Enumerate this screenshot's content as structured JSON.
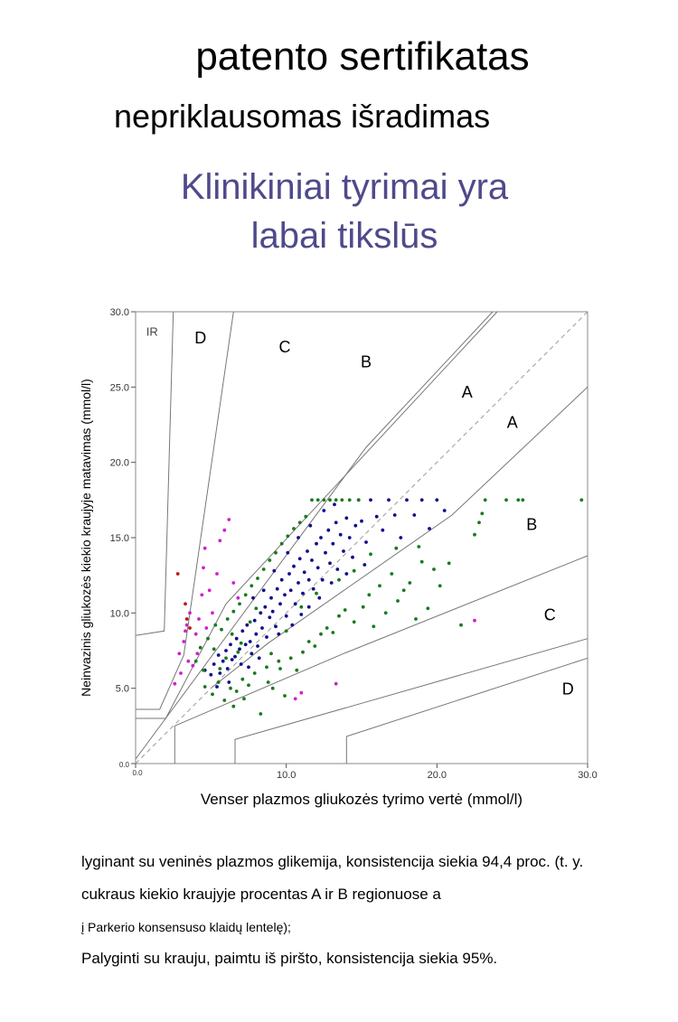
{
  "header": {
    "title": "patento sertifikatas",
    "subtitle": "nepriklausomas išradimas",
    "tagline_line1": "Klinikiniai tyrimai yra",
    "tagline_line2": "labai tikslūs"
  },
  "captions": {
    "line1": "lyginant su veninės plazmos glikemija, konsistencija siekia 94,4 proc. (t. y.",
    "line2": "cukraus kiekio kraujyje procentas A ir B regionuose a",
    "line3": "į Parkerio konsensuso klaidų lentelę);",
    "line4": "Palyginti su krauju, paimtu iš piršto, konsistencija siekia 95%."
  },
  "chart_data": {
    "type": "scatter",
    "title": "",
    "xlabel": "Venser plazmos gliukozės tyrimo vertė (mmol/l)",
    "ylabel": "Neinvazinis gliukozės kiekio kraujyje matavimas (mmol/l)",
    "xlim": [
      0,
      30
    ],
    "ylim": [
      0,
      30
    ],
    "x_ticks": [
      "0.0",
      "10.0",
      "20.0",
      "30.0"
    ],
    "y_ticks": [
      "0.0",
      "5.0",
      "10.0",
      "15.0",
      "20.0",
      "25.0",
      "30.0"
    ],
    "grid": false,
    "identity_line": true,
    "zone_labels": [
      {
        "text": "IR",
        "x": 1.1,
        "y": 28.4
      },
      {
        "text": "D",
        "x": 4.3,
        "y": 27.9
      },
      {
        "text": "C",
        "x": 9.9,
        "y": 27.3
      },
      {
        "text": "B",
        "x": 15.3,
        "y": 26.3
      },
      {
        "text": "A",
        "x": 22.0,
        "y": 24.3
      },
      {
        "text": "A",
        "x": 25.0,
        "y": 22.3
      },
      {
        "text": "B",
        "x": 26.3,
        "y": 15.5
      },
      {
        "text": "C",
        "x": 27.5,
        "y": 9.5
      },
      {
        "text": "D",
        "x": 28.7,
        "y": 4.6
      }
    ],
    "boundaries": [
      {
        "name": "upper-A",
        "points": [
          [
            0,
            0.3
          ],
          [
            15.3,
            21.0
          ],
          [
            23.7,
            30.0
          ]
        ]
      },
      {
        "name": "lower-A",
        "points": [
          [
            5.0,
            5.0
          ],
          [
            8.8,
            8.0
          ],
          [
            21.0,
            16.5
          ],
          [
            30.0,
            25.0
          ]
        ]
      },
      {
        "name": "upper-B",
        "points": [
          [
            0,
            3.0
          ],
          [
            2.0,
            3.0
          ],
          [
            6.0,
            10.6
          ],
          [
            24.0,
            30.0
          ]
        ]
      },
      {
        "name": "lower-B",
        "points": [
          [
            2.6,
            0.0
          ],
          [
            2.6,
            2.5
          ],
          [
            13.8,
            7.3
          ],
          [
            30.0,
            13.8
          ]
        ]
      },
      {
        "name": "upper-C",
        "points": [
          [
            0,
            3.6
          ],
          [
            1.6,
            3.6
          ],
          [
            3.2,
            7.2
          ],
          [
            6.5,
            30.0
          ]
        ]
      },
      {
        "name": "lower-C",
        "points": [
          [
            6.6,
            0.0
          ],
          [
            6.6,
            1.6
          ],
          [
            15.0,
            4.0
          ],
          [
            30.0,
            8.3
          ]
        ]
      },
      {
        "name": "upper-D",
        "points": [
          [
            0,
            8.5
          ],
          [
            1.9,
            8.8
          ],
          [
            2.5,
            30.0
          ]
        ]
      },
      {
        "name": "lower-D",
        "points": [
          [
            14.0,
            0.0
          ],
          [
            14.0,
            1.8
          ],
          [
            30.0,
            7.0
          ]
        ]
      }
    ],
    "series": [
      {
        "name": "zone A",
        "color": "#10108a",
        "points": [
          [
            4.6,
            6.2
          ],
          [
            5.0,
            5.9
          ],
          [
            5.2,
            6.6
          ],
          [
            5.5,
            7.2
          ],
          [
            5.6,
            6.0
          ],
          [
            5.8,
            6.8
          ],
          [
            6.0,
            7.5
          ],
          [
            6.1,
            6.3
          ],
          [
            6.3,
            7.9
          ],
          [
            6.4,
            6.9
          ],
          [
            6.6,
            7.1
          ],
          [
            6.7,
            8.3
          ],
          [
            6.9,
            7.6
          ],
          [
            7.0,
            6.6
          ],
          [
            7.1,
            8.8
          ],
          [
            7.3,
            7.9
          ],
          [
            7.4,
            9.2
          ],
          [
            7.6,
            8.1
          ],
          [
            7.7,
            7.3
          ],
          [
            7.9,
            9.5
          ],
          [
            8.0,
            8.6
          ],
          [
            8.1,
            7.8
          ],
          [
            8.3,
            10.0
          ],
          [
            8.4,
            9.0
          ],
          [
            8.6,
            10.4
          ],
          [
            8.7,
            8.4
          ],
          [
            8.9,
            9.7
          ],
          [
            9.0,
            11.0
          ],
          [
            9.1,
            10.1
          ],
          [
            9.3,
            9.1
          ],
          [
            9.4,
            11.6
          ],
          [
            9.6,
            10.6
          ],
          [
            9.7,
            12.2
          ],
          [
            9.9,
            11.2
          ],
          [
            10.0,
            9.8
          ],
          [
            10.2,
            12.6
          ],
          [
            10.3,
            11.5
          ],
          [
            10.5,
            13.1
          ],
          [
            10.6,
            10.6
          ],
          [
            10.8,
            12.0
          ],
          [
            10.9,
            13.6
          ],
          [
            11.1,
            11.3
          ],
          [
            11.2,
            12.7
          ],
          [
            11.4,
            14.1
          ],
          [
            11.5,
            12.2
          ],
          [
            11.7,
            13.5
          ],
          [
            11.8,
            11.6
          ],
          [
            12.0,
            14.6
          ],
          [
            12.1,
            13.0
          ],
          [
            12.3,
            15.0
          ],
          [
            12.4,
            12.2
          ],
          [
            12.6,
            14.0
          ],
          [
            12.8,
            15.5
          ],
          [
            12.9,
            13.3
          ],
          [
            13.1,
            14.6
          ],
          [
            13.3,
            16.0
          ],
          [
            13.4,
            12.9
          ],
          [
            13.6,
            15.2
          ],
          [
            13.8,
            14.1
          ],
          [
            14.0,
            16.3
          ],
          [
            14.2,
            15.0
          ],
          [
            14.4,
            13.7
          ],
          [
            14.6,
            15.8
          ],
          [
            14.8,
            17.5
          ],
          [
            15.0,
            16.1
          ],
          [
            15.3,
            14.7
          ],
          [
            15.6,
            17.5
          ],
          [
            16.0,
            16.4
          ],
          [
            16.4,
            15.5
          ],
          [
            16.8,
            17.5
          ],
          [
            17.2,
            16.5
          ],
          [
            17.6,
            15.0
          ],
          [
            18.0,
            17.5
          ],
          [
            18.5,
            16.5
          ],
          [
            19.0,
            17.5
          ],
          [
            19.5,
            15.6
          ],
          [
            20.0,
            17.5
          ],
          [
            20.5,
            16.8
          ],
          [
            7.8,
            11.0
          ],
          [
            8.5,
            11.5
          ],
          [
            9.2,
            12.8
          ],
          [
            10.1,
            14.0
          ],
          [
            10.8,
            15.0
          ],
          [
            11.6,
            15.8
          ],
          [
            12.5,
            16.8
          ],
          [
            13.2,
            17.2
          ],
          [
            9.5,
            8.6
          ],
          [
            10.4,
            9.2
          ],
          [
            11.0,
            9.9
          ],
          [
            6.2,
            5.4
          ],
          [
            5.4,
            5.1
          ],
          [
            7.5,
            6.4
          ],
          [
            8.2,
            7.0
          ],
          [
            12.2,
            11.0
          ],
          [
            13.0,
            12.0
          ],
          [
            14.0,
            12.6
          ],
          [
            15.2,
            13.2
          ],
          [
            11.5,
            10.4
          ]
        ]
      },
      {
        "name": "zone B",
        "color": "#1a7a1a",
        "points": [
          [
            4.0,
            6.8
          ],
          [
            4.3,
            7.7
          ],
          [
            4.6,
            5.1
          ],
          [
            4.8,
            8.3
          ],
          [
            5.1,
            4.6
          ],
          [
            5.3,
            9.2
          ],
          [
            5.5,
            5.4
          ],
          [
            5.7,
            8.9
          ],
          [
            5.9,
            4.2
          ],
          [
            6.1,
            9.6
          ],
          [
            6.3,
            5.0
          ],
          [
            6.5,
            10.1
          ],
          [
            6.7,
            4.8
          ],
          [
            6.9,
            10.6
          ],
          [
            7.1,
            5.6
          ],
          [
            7.3,
            11.2
          ],
          [
            7.5,
            5.2
          ],
          [
            7.7,
            11.8
          ],
          [
            7.9,
            6.0
          ],
          [
            8.1,
            12.3
          ],
          [
            8.3,
            3.3
          ],
          [
            8.5,
            12.9
          ],
          [
            8.7,
            6.4
          ],
          [
            8.9,
            13.5
          ],
          [
            9.1,
            5.0
          ],
          [
            9.3,
            14.0
          ],
          [
            9.5,
            6.8
          ],
          [
            9.7,
            14.6
          ],
          [
            9.9,
            4.5
          ],
          [
            10.1,
            15.1
          ],
          [
            10.3,
            7.0
          ],
          [
            10.5,
            15.6
          ],
          [
            10.7,
            6.2
          ],
          [
            10.9,
            16.0
          ],
          [
            11.1,
            7.4
          ],
          [
            11.3,
            16.4
          ],
          [
            11.5,
            8.1
          ],
          [
            11.7,
            17.5
          ],
          [
            11.9,
            7.8
          ],
          [
            12.1,
            17.5
          ],
          [
            12.3,
            8.6
          ],
          [
            12.5,
            17.5
          ],
          [
            12.7,
            9.0
          ],
          [
            12.9,
            17.5
          ],
          [
            13.1,
            8.7
          ],
          [
            13.3,
            17.5
          ],
          [
            13.5,
            9.8
          ],
          [
            13.7,
            17.5
          ],
          [
            13.9,
            10.2
          ],
          [
            14.2,
            17.5
          ],
          [
            14.5,
            9.4
          ],
          [
            14.8,
            17.5
          ],
          [
            15.1,
            10.4
          ],
          [
            15.5,
            11.2
          ],
          [
            15.8,
            9.1
          ],
          [
            16.2,
            11.8
          ],
          [
            16.6,
            10.0
          ],
          [
            17.0,
            12.6
          ],
          [
            17.4,
            10.8
          ],
          [
            17.8,
            11.5
          ],
          [
            18.2,
            12.0
          ],
          [
            18.6,
            9.6
          ],
          [
            19.0,
            13.4
          ],
          [
            19.4,
            10.3
          ],
          [
            19.8,
            12.9
          ],
          [
            20.2,
            11.8
          ],
          [
            20.8,
            13.3
          ],
          [
            21.6,
            9.2
          ],
          [
            22.5,
            15.2
          ],
          [
            22.8,
            16.0
          ],
          [
            23.0,
            16.6
          ],
          [
            23.2,
            17.5
          ],
          [
            24.6,
            17.5
          ],
          [
            25.4,
            17.5
          ],
          [
            25.7,
            17.5
          ],
          [
            29.6,
            17.5
          ],
          [
            7.0,
            8.0
          ],
          [
            6.8,
            7.4
          ],
          [
            6.4,
            8.6
          ],
          [
            6.0,
            7.0
          ],
          [
            5.6,
            6.3
          ],
          [
            7.6,
            9.4
          ],
          [
            8.0,
            10.3
          ],
          [
            9.0,
            7.3
          ],
          [
            10.0,
            8.8
          ],
          [
            11.0,
            10.4
          ],
          [
            12.0,
            11.3
          ],
          [
            13.5,
            12.2
          ],
          [
            14.5,
            12.8
          ],
          [
            15.6,
            13.9
          ],
          [
            17.3,
            14.3
          ],
          [
            18.8,
            14.4
          ],
          [
            6.5,
            3.8
          ],
          [
            7.2,
            4.3
          ],
          [
            8.8,
            5.4
          ],
          [
            9.6,
            6.3
          ],
          [
            5.2,
            7.6
          ],
          [
            4.5,
            6.2
          ]
        ]
      },
      {
        "name": "zone C",
        "color": "#cc22cc",
        "points": [
          [
            2.6,
            5.3
          ],
          [
            2.9,
            7.3
          ],
          [
            3.2,
            8.1
          ],
          [
            3.4,
            9.2
          ],
          [
            3.6,
            10.0
          ],
          [
            3.8,
            6.5
          ],
          [
            4.0,
            8.6
          ],
          [
            4.2,
            9.6
          ],
          [
            4.4,
            11.2
          ],
          [
            4.5,
            13.0
          ],
          [
            4.7,
            9.0
          ],
          [
            4.9,
            11.5
          ],
          [
            5.1,
            10.0
          ],
          [
            5.4,
            12.6
          ],
          [
            5.6,
            14.8
          ],
          [
            5.9,
            15.5
          ],
          [
            6.2,
            16.2
          ],
          [
            6.5,
            12.0
          ],
          [
            6.8,
            11.0
          ],
          [
            3.0,
            6.0
          ],
          [
            3.5,
            6.8
          ],
          [
            4.6,
            14.3
          ],
          [
            10.6,
            4.3
          ],
          [
            11.0,
            4.7
          ],
          [
            13.3,
            5.3
          ],
          [
            22.5,
            9.5
          ],
          [
            4.1,
            7.3
          ],
          [
            3.3,
            8.8
          ]
        ]
      },
      {
        "name": "zone D",
        "color": "#c01a10",
        "points": [
          [
            2.8,
            12.6
          ],
          [
            3.3,
            10.6
          ],
          [
            3.4,
            9.6
          ],
          [
            3.6,
            9.0
          ]
        ]
      }
    ]
  }
}
